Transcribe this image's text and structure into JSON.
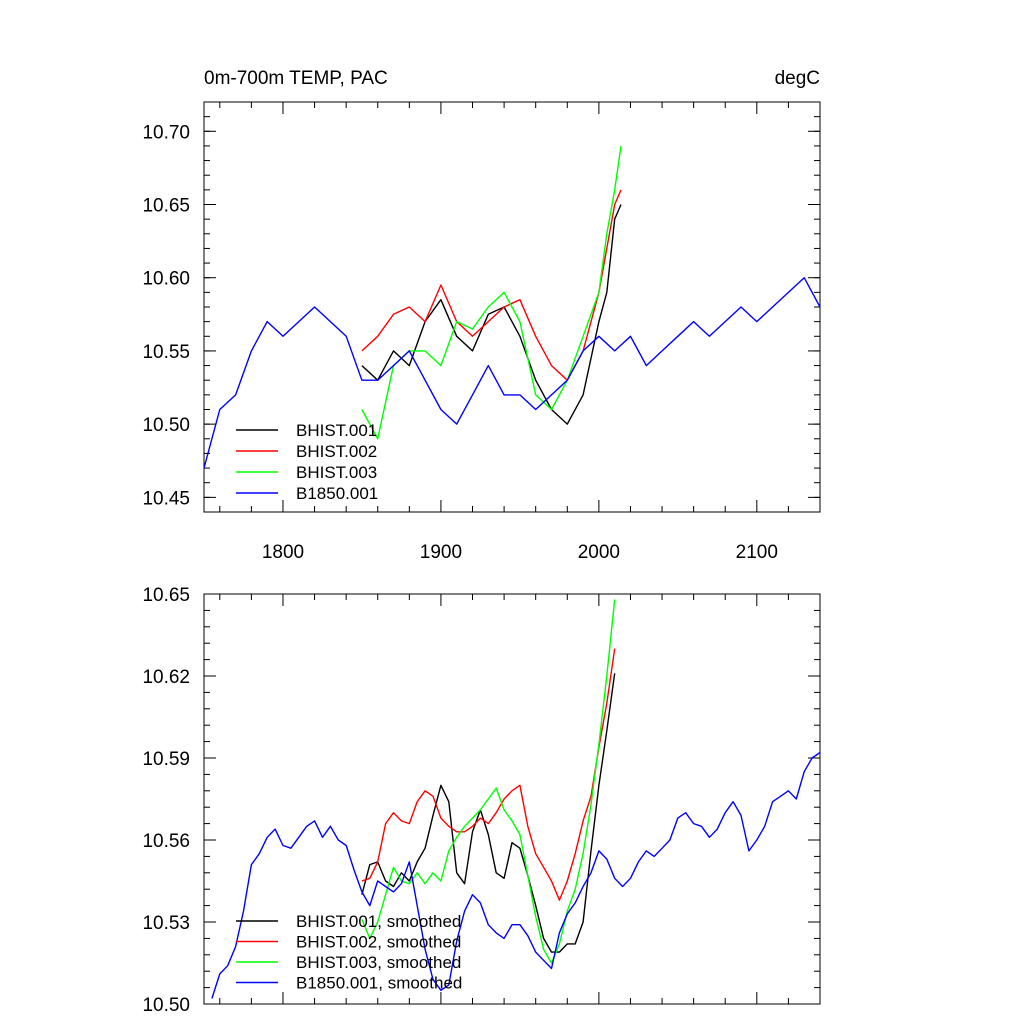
{
  "chart_data": [
    {
      "type": "line",
      "title_left": "0m-700m TEMP, PAC",
      "title_right": "degC",
      "xlim": [
        1750,
        2140
      ],
      "ylim": [
        10.44,
        10.72
      ],
      "x_ticks": [
        1800,
        1900,
        2000,
        2100
      ],
      "x_tick_labels": [
        "1800",
        "1900",
        "2000",
        "2100"
      ],
      "y_ticks": [
        10.45,
        10.5,
        10.55,
        10.6,
        10.65,
        10.7
      ],
      "y_tick_labels": [
        "10.45",
        "10.50",
        "10.55",
        "10.60",
        "10.65",
        "10.70"
      ],
      "legend": [
        "BHIST.001",
        "BHIST.002",
        "BHIST.003",
        "B1850.001"
      ],
      "series": [
        {
          "name": "BHIST.001",
          "color": "#000000",
          "x": [
            1850,
            1860,
            1870,
            1880,
            1890,
            1900,
            1910,
            1920,
            1930,
            1940,
            1950,
            1960,
            1970,
            1980,
            1990,
            2000,
            2005,
            2010,
            2014
          ],
          "y": [
            10.54,
            10.53,
            10.55,
            10.54,
            10.57,
            10.585,
            10.56,
            10.55,
            10.575,
            10.58,
            10.56,
            10.53,
            10.51,
            10.5,
            10.52,
            10.57,
            10.59,
            10.64,
            10.65
          ]
        },
        {
          "name": "BHIST.002",
          "color": "#ff0000",
          "x": [
            1850,
            1860,
            1870,
            1880,
            1890,
            1900,
            1910,
            1920,
            1930,
            1940,
            1950,
            1960,
            1970,
            1980,
            1990,
            2000,
            2005,
            2010,
            2014
          ],
          "y": [
            10.55,
            10.56,
            10.575,
            10.58,
            10.57,
            10.595,
            10.57,
            10.56,
            10.57,
            10.58,
            10.585,
            10.56,
            10.54,
            10.53,
            10.55,
            10.59,
            10.62,
            10.65,
            10.66
          ]
        },
        {
          "name": "BHIST.003",
          "color": "#00ff00",
          "x": [
            1850,
            1860,
            1870,
            1880,
            1890,
            1900,
            1910,
            1920,
            1930,
            1940,
            1950,
            1960,
            1970,
            1980,
            1990,
            2000,
            2005,
            2010,
            2014
          ],
          "y": [
            10.51,
            10.49,
            10.54,
            10.55,
            10.55,
            10.54,
            10.57,
            10.565,
            10.58,
            10.59,
            10.57,
            10.52,
            10.51,
            10.53,
            10.56,
            10.59,
            10.63,
            10.66,
            10.69
          ]
        },
        {
          "name": "B1850.001",
          "color": "#0000ff",
          "x": [
            1750,
            1760,
            1770,
            1780,
            1790,
            1800,
            1810,
            1820,
            1830,
            1840,
            1850,
            1860,
            1870,
            1880,
            1890,
            1900,
            1910,
            1920,
            1930,
            1940,
            1950,
            1960,
            1970,
            1980,
            1990,
            2000,
            2010,
            2020,
            2030,
            2040,
            2050,
            2060,
            2070,
            2080,
            2090,
            2100,
            2110,
            2120,
            2130,
            2140
          ],
          "y": [
            10.47,
            10.51,
            10.52,
            10.55,
            10.57,
            10.56,
            10.57,
            10.58,
            10.57,
            10.56,
            10.53,
            10.53,
            10.54,
            10.55,
            10.53,
            10.51,
            10.5,
            10.52,
            10.54,
            10.52,
            10.52,
            10.51,
            10.52,
            10.53,
            10.55,
            10.56,
            10.55,
            10.56,
            10.54,
            10.55,
            10.56,
            10.57,
            10.56,
            10.57,
            10.58,
            10.57,
            10.58,
            10.59,
            10.6,
            10.58
          ]
        }
      ]
    },
    {
      "type": "line",
      "xlim": [
        1750,
        2140
      ],
      "ylim": [
        10.5,
        10.65
      ],
      "x_ticks": [
        1800,
        1900,
        2000,
        2100
      ],
      "x_tick_labels": [],
      "y_ticks": [
        10.5,
        10.53,
        10.56,
        10.59,
        10.62,
        10.65
      ],
      "y_tick_labels": [
        "10.50",
        "10.53",
        "10.56",
        "10.59",
        "10.62",
        "10.65"
      ],
      "legend": [
        "BHIST.001, smoothed",
        "BHIST.002, smoothed",
        "BHIST.003, smoothed",
        "B1850.001, smoothed"
      ],
      "series": [
        {
          "name": "BHIST.001, smoothed",
          "color": "#000000",
          "x": [
            1850,
            1855,
            1860,
            1865,
            1870,
            1875,
            1880,
            1885,
            1890,
            1895,
            1900,
            1905,
            1910,
            1915,
            1920,
            1925,
            1930,
            1935,
            1940,
            1945,
            1950,
            1955,
            1960,
            1965,
            1970,
            1975,
            1980,
            1985,
            1990,
            1995,
            2000,
            2005,
            2010
          ],
          "y": [
            10.54,
            10.551,
            10.552,
            10.545,
            10.543,
            10.548,
            10.545,
            10.552,
            10.557,
            10.569,
            10.58,
            10.574,
            10.548,
            10.544,
            10.563,
            10.571,
            10.562,
            10.548,
            10.546,
            10.559,
            10.557,
            10.547,
            10.536,
            10.524,
            10.519,
            10.519,
            10.522,
            10.522,
            10.53,
            10.556,
            10.58,
            10.6,
            10.621
          ]
        },
        {
          "name": "BHIST.002, smoothed",
          "color": "#ff0000",
          "x": [
            1850,
            1855,
            1860,
            1865,
            1870,
            1875,
            1880,
            1885,
            1890,
            1895,
            1900,
            1905,
            1910,
            1915,
            1920,
            1925,
            1930,
            1935,
            1940,
            1945,
            1950,
            1955,
            1960,
            1965,
            1970,
            1975,
            1980,
            1985,
            1990,
            1995,
            2000,
            2005,
            2010
          ],
          "y": [
            10.545,
            10.546,
            10.552,
            10.566,
            10.57,
            10.567,
            10.566,
            10.574,
            10.578,
            10.576,
            10.568,
            10.565,
            10.563,
            10.563,
            10.565,
            10.568,
            10.566,
            10.57,
            10.575,
            10.578,
            10.58,
            10.565,
            10.555,
            10.55,
            10.545,
            10.538,
            10.545,
            10.555,
            10.567,
            10.576,
            10.594,
            10.61,
            10.63
          ]
        },
        {
          "name": "BHIST.003, smoothed",
          "color": "#00ff00",
          "x": [
            1850,
            1855,
            1860,
            1865,
            1870,
            1875,
            1880,
            1885,
            1890,
            1895,
            1900,
            1905,
            1910,
            1915,
            1920,
            1925,
            1930,
            1935,
            1940,
            1945,
            1950,
            1955,
            1960,
            1965,
            1970,
            1975,
            1980,
            1985,
            1990,
            1995,
            2000,
            2005,
            2010
          ],
          "y": [
            10.531,
            10.524,
            10.53,
            10.54,
            10.55,
            10.545,
            10.544,
            10.548,
            10.544,
            10.548,
            10.545,
            10.556,
            10.561,
            10.565,
            10.568,
            10.571,
            10.575,
            10.579,
            10.571,
            10.567,
            10.562,
            10.547,
            10.532,
            10.52,
            10.515,
            10.522,
            10.534,
            10.542,
            10.555,
            10.573,
            10.595,
            10.62,
            10.648
          ]
        },
        {
          "name": "B1850.001, smoothed",
          "color": "#0000ff",
          "x": [
            1755,
            1760,
            1765,
            1770,
            1775,
            1780,
            1785,
            1790,
            1795,
            1800,
            1805,
            1810,
            1815,
            1820,
            1825,
            1830,
            1835,
            1840,
            1845,
            1850,
            1855,
            1860,
            1865,
            1870,
            1875,
            1880,
            1885,
            1890,
            1895,
            1900,
            1905,
            1910,
            1915,
            1920,
            1925,
            1930,
            1935,
            1940,
            1945,
            1950,
            1955,
            1960,
            1965,
            1970,
            1975,
            1980,
            1985,
            1990,
            1995,
            2000,
            2005,
            2010,
            2015,
            2020,
            2025,
            2030,
            2035,
            2040,
            2045,
            2050,
            2055,
            2060,
            2065,
            2070,
            2075,
            2080,
            2085,
            2090,
            2095,
            2100,
            2105,
            2110,
            2115,
            2120,
            2125,
            2130,
            2135,
            2140
          ],
          "y": [
            10.502,
            10.511,
            10.514,
            10.521,
            10.534,
            10.551,
            10.555,
            10.561,
            10.564,
            10.558,
            10.557,
            10.561,
            10.565,
            10.567,
            10.561,
            10.565,
            10.56,
            10.558,
            10.549,
            10.541,
            10.536,
            10.545,
            10.543,
            10.541,
            10.544,
            10.552,
            10.536,
            10.52,
            10.509,
            10.505,
            10.507,
            10.523,
            10.534,
            10.54,
            10.537,
            10.529,
            10.526,
            10.524,
            10.529,
            10.529,
            10.525,
            10.519,
            10.516,
            10.513,
            10.526,
            10.533,
            10.537,
            10.543,
            10.548,
            10.556,
            10.553,
            10.546,
            10.543,
            10.546,
            10.552,
            10.556,
            10.554,
            10.557,
            10.56,
            10.568,
            10.57,
            10.566,
            10.565,
            10.561,
            10.564,
            10.57,
            10.574,
            10.569,
            10.556,
            10.56,
            10.565,
            10.574,
            10.576,
            10.578,
            10.575,
            10.585,
            10.59,
            10.592
          ]
        }
      ]
    }
  ]
}
